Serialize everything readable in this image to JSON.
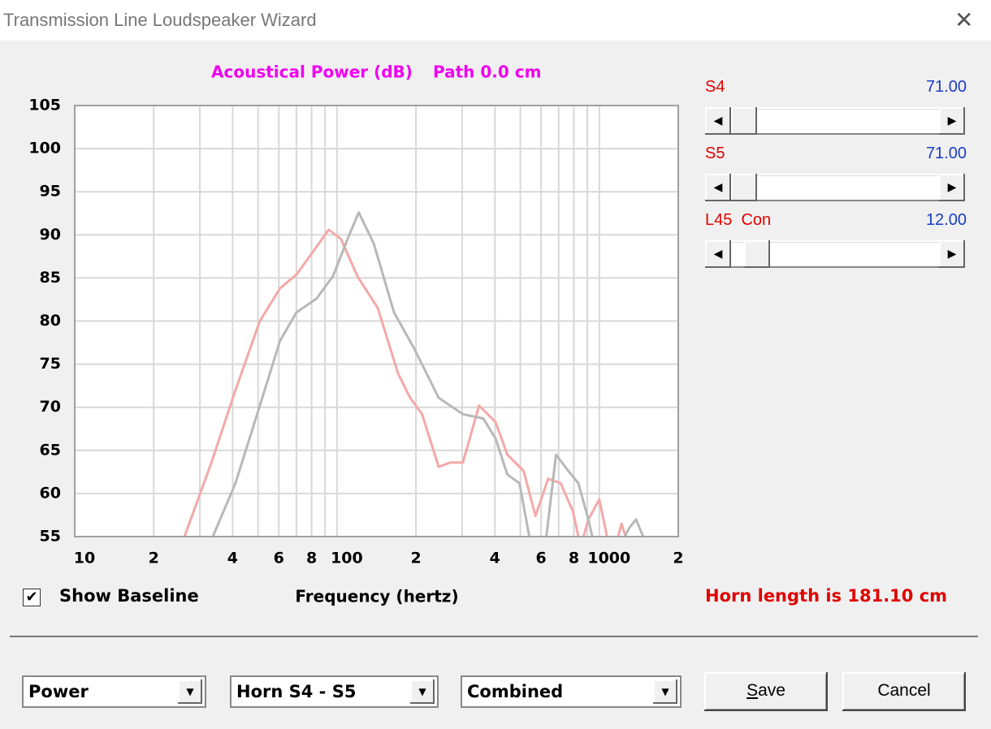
{
  "window": {
    "title": "Transmission Line Loudspeaker Wizard"
  },
  "chart_data": {
    "type": "line",
    "title": "Acoustical Power (dB)",
    "subtitle": "Path 0.0 cm",
    "x_label": "Frequency (hertz)",
    "xscale": "log",
    "xlim": [
      10,
      2000
    ],
    "ylim": [
      55,
      105
    ],
    "grid": true,
    "xticks": [
      10,
      {
        "value": 20,
        "label": "2"
      },
      {
        "value": 40,
        "label": "4"
      },
      {
        "value": 60,
        "label": "6"
      },
      {
        "value": 80,
        "label": "8"
      },
      100,
      {
        "value": 200,
        "label": "2"
      },
      {
        "value": 400,
        "label": "4"
      },
      {
        "value": 600,
        "label": "6"
      },
      {
        "value": 800,
        "label": "8"
      },
      1000,
      {
        "value": 2000,
        "label": "2"
      }
    ],
    "xgrid_minor": [
      30,
      50,
      70,
      90,
      300,
      500,
      700,
      900
    ],
    "yticks": [
      55,
      60,
      65,
      70,
      75,
      80,
      85,
      90,
      95,
      100,
      105
    ],
    "series": [
      {
        "color": "#f4a8a8",
        "x": [
          26.2,
          33.2,
          41,
          50.8,
          60.6,
          70,
          80.8,
          93,
          103.6,
          119.6,
          143,
          171,
          190,
          211,
          244,
          271,
          302,
          348,
          402,
          446,
          515,
          571,
          638,
          712,
          794,
          832,
          null,
          870,
          908,
          1000,
          1070,
          null,
          1180,
          1215,
          1260
        ],
        "values": [
          55,
          63.6,
          72,
          80,
          83.8,
          85.4,
          88,
          90.6,
          89.5,
          85.2,
          81.5,
          73.9,
          71.1,
          69.2,
          63.1,
          63.6,
          63.6,
          70.2,
          68.3,
          64.5,
          62.6,
          57.4,
          61.7,
          61.2,
          57.9,
          55,
          null,
          55,
          57,
          59.3,
          55,
          null,
          55,
          56.5,
          55
        ]
      },
      {
        "color": "#b8b8b8",
        "x": [
          33.6,
          41,
          50.8,
          60.6,
          70,
          83.5,
          96.5,
          111,
          121,
          138,
          165,
          197,
          244,
          302,
          361,
          402,
          446,
          496,
          541,
          null,
          628,
          684,
          763,
          832,
          908,
          940,
          null,
          1250,
          1300,
          1380,
          1470
        ],
        "values": [
          55,
          61.2,
          70.2,
          77.7,
          81,
          82.6,
          85.2,
          89.9,
          92.6,
          89,
          81,
          76.8,
          71.1,
          69.2,
          68.7,
          66.4,
          62.2,
          61.2,
          55,
          null,
          55,
          64.5,
          62.6,
          61.2,
          57,
          55,
          null,
          55,
          56,
          57,
          55
        ]
      }
    ]
  },
  "sliders": [
    {
      "label": "S4",
      "value": "71.00"
    },
    {
      "label": "S5",
      "value": "71.00"
    },
    {
      "label": "L45  Con",
      "value": "12.00"
    }
  ],
  "checkbox": {
    "label": "Show Baseline",
    "checked": true
  },
  "status": "Horn length is 181.10 cm",
  "dropdowns": [
    "Power",
    "Horn S4 - S5",
    "Combined"
  ],
  "buttons": [
    "Save",
    "Cancel"
  ]
}
